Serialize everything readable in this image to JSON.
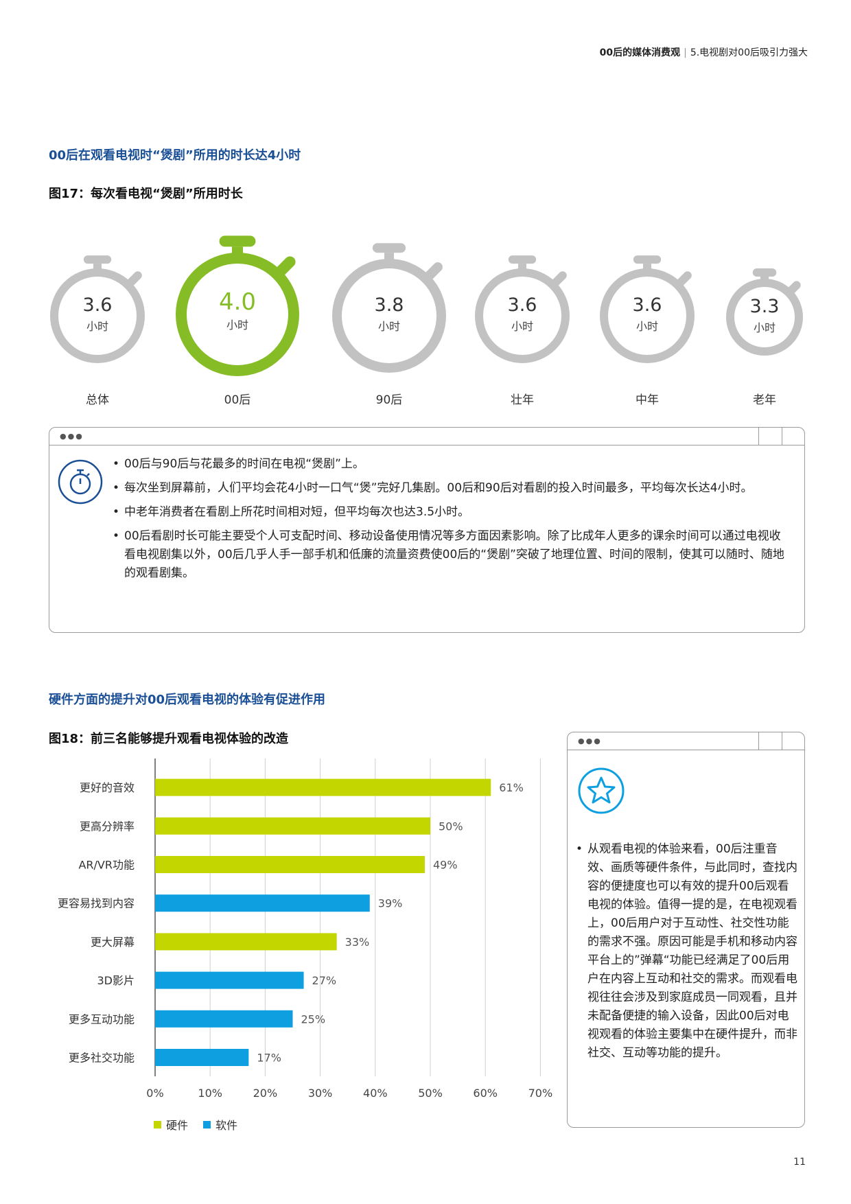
{
  "header": {
    "bold": "00后的媒体消费观",
    "sep": "|",
    "rest": "5.电视剧对00后吸引力强大"
  },
  "section1_title": "00后在观看电视时“煲剧”所用的时长达4小时",
  "fig17_title": "图17：每次看电视“煲剧”所用时长",
  "watches": [
    {
      "value": "3.6",
      "unit": "小时",
      "label": "总体",
      "color": "#c2c2c2",
      "value_color": "#333333"
    },
    {
      "value": "4.0",
      "unit": "小时",
      "label": "00后",
      "color": "#86bc25",
      "value_color": "#86bc25"
    },
    {
      "value": "3.8",
      "unit": "小时",
      "label": "90后",
      "color": "#c2c2c2",
      "value_color": "#333333"
    },
    {
      "value": "3.6",
      "unit": "小时",
      "label": "壮年",
      "color": "#c2c2c2",
      "value_color": "#333333"
    },
    {
      "value": "3.6",
      "unit": "小时",
      "label": "中年",
      "color": "#c2c2c2",
      "value_color": "#333333"
    },
    {
      "value": "3.3",
      "unit": "小时",
      "label": "老年",
      "color": "#c2c2c2",
      "value_color": "#333333"
    }
  ],
  "box1": {
    "dots": "●●●",
    "icon": "stopwatch-icon",
    "bullets": [
      "00后与90后与花最多的时间在电视“煲剧”上。",
      "每次坐到屏幕前，人们平均会花4小时一口气“煲”完好几集剧。00后和90后对看剧的投入时间最多，平均每次长达4小时。",
      "中老年消费者在看剧上所花时间相对短，但平均每次也达3.5小时。",
      "00后看剧时长可能主要受个人可支配时间、移动设备使用情况等多方面因素影响。除了比成年人更多的课余时间可以通过电视收看电视剧集以外，00后几乎人手一部手机和低廉的流量资费使00后的“煲剧”突破了地理位置、时间的限制，使其可以随时、随地的观看剧集。"
    ]
  },
  "section2_title": "硬件方面的提升对00后观看电视的体验有促进作用",
  "fig18_title": "图18：前三名能够提升观看电视体验的改造",
  "chart_data": {
    "type": "bar",
    "orientation": "horizontal",
    "categories": [
      "更好的音效",
      "更高分辨率",
      "AR/VR功能",
      "更容易找到内容",
      "更大屏幕",
      "3D影片",
      "更多互动功能",
      "更多社交功能"
    ],
    "values": [
      61,
      50,
      49,
      39,
      33,
      27,
      25,
      17
    ],
    "value_labels": [
      "61%",
      "50%",
      "49%",
      "39%",
      "33%",
      "27%",
      "25%",
      "17%"
    ],
    "groups": [
      "硬件",
      "硬件",
      "硬件",
      "软件",
      "硬件",
      "软件",
      "软件",
      "软件"
    ],
    "legend": [
      {
        "name": "硬件",
        "color": "#c4d600"
      },
      {
        "name": "软件",
        "color": "#0d9fe0"
      }
    ],
    "xlim": [
      0,
      70
    ],
    "xticks": [
      0,
      10,
      20,
      30,
      40,
      50,
      60,
      70
    ],
    "xtick_labels": [
      "0%",
      "10%",
      "20%",
      "30%",
      "40%",
      "50%",
      "60%",
      "70%"
    ],
    "grid": true,
    "legend_position": "bottom-left"
  },
  "box2": {
    "dots": "●●●",
    "icon": "star-icon",
    "text": "从观看电视的体验来看，00后注重音效、画质等硬件条件，与此同时，查找内容的便捷度也可以有效的提升00后观看电视的体验。值得一提的是，在电视观看上，00后用户对于互动性、社交性功能的需求不强。原因可能是手机和移动内容平台上的”弹幕“功能已经满足了00后用户在内容上互动和社交的需求。而观看电视往往会涉及到家庭成员一同观看，且并未配备便捷的输入设备，因此00后对电视观看的体验主要集中在硬件提升，而非社交、互动等功能的提升。"
  },
  "page_number": "11"
}
